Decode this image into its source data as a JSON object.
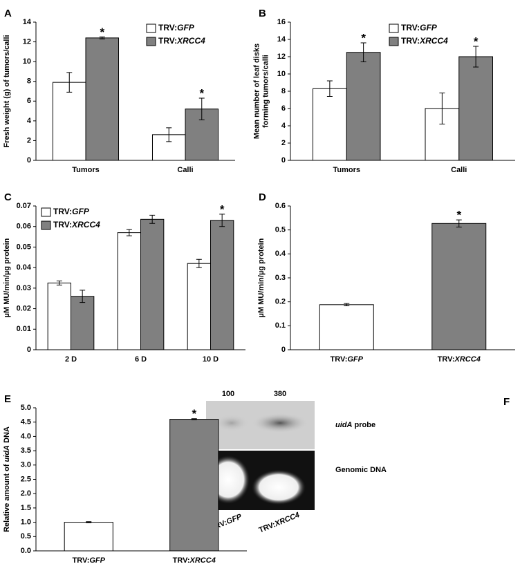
{
  "chart_data": [
    {
      "type": "bar",
      "panel": "A",
      "y_label": [
        "Fresh weight (g) of tumors/calli"
      ],
      "categories": [
        "Tumors",
        "Calli"
      ],
      "series": [
        {
          "name": "TRV:GFP",
          "color": "#ffffff",
          "values": [
            7.9,
            2.6
          ],
          "errors": [
            1.0,
            0.7
          ]
        },
        {
          "name": "TRV:XRCC4",
          "color": "#808080",
          "values": [
            12.4,
            5.2
          ],
          "errors": [
            0.1,
            1.1
          ]
        }
      ],
      "ylim": [
        0,
        14
      ],
      "yticks": [
        0,
        2,
        4,
        6,
        8,
        10,
        12,
        14
      ],
      "annotations": [
        {
          "text": "*",
          "series": 1,
          "index": 0
        },
        {
          "text": "*",
          "series": 1,
          "index": 1
        }
      ]
    },
    {
      "type": "bar",
      "panel": "B",
      "y_label": [
        "Mean number of leaf disks",
        "forming tumors/calli"
      ],
      "categories": [
        "Tumors",
        "Calli"
      ],
      "series": [
        {
          "name": "TRV:GFP",
          "color": "#ffffff",
          "values": [
            8.3,
            6.0
          ],
          "errors": [
            0.9,
            1.8
          ]
        },
        {
          "name": "TRV:XRCC4",
          "color": "#808080",
          "values": [
            12.5,
            12.0
          ],
          "errors": [
            1.1,
            1.2
          ]
        }
      ],
      "ylim": [
        0,
        16
      ],
      "yticks": [
        0,
        2,
        4,
        6,
        8,
        10,
        12,
        14,
        16
      ],
      "annotations": [
        {
          "text": "*",
          "series": 1,
          "index": 0
        },
        {
          "text": "*",
          "series": 1,
          "index": 1
        }
      ]
    },
    {
      "type": "bar",
      "panel": "C",
      "y_label": [
        "µM MU/min/µg protein"
      ],
      "categories": [
        "2 D",
        "6 D",
        "10 D"
      ],
      "series": [
        {
          "name": "TRV:GFP",
          "color": "#ffffff",
          "values": [
            0.0325,
            0.057,
            0.042
          ],
          "errors": [
            0.001,
            0.0015,
            0.002
          ]
        },
        {
          "name": "TRV:XRCC4",
          "color": "#808080",
          "values": [
            0.026,
            0.0635,
            0.063
          ],
          "errors": [
            0.003,
            0.002,
            0.003
          ]
        }
      ],
      "ylim": [
        0,
        0.07
      ],
      "yticks": [
        0,
        0.01,
        0.02,
        0.03,
        0.04,
        0.05,
        0.06,
        0.07
      ],
      "annotations": [
        {
          "text": "*",
          "series": 1,
          "index": 2
        }
      ]
    },
    {
      "type": "bar",
      "panel": "D",
      "y_label": [
        "µM MU/min/µg protein"
      ],
      "categories": [
        "TRV:GFP",
        "TRV:XRCC4"
      ],
      "series": [
        {
          "colors": [
            "#ffffff",
            "#808080"
          ],
          "values": [
            0.188,
            0.527
          ],
          "errors": [
            0.005,
            0.015
          ]
        }
      ],
      "ylim": [
        0,
        0.6
      ],
      "yticks": [
        0,
        0.1,
        0.2,
        0.3,
        0.4,
        0.5,
        0.6
      ],
      "annotations": [
        {
          "text": "*",
          "series": 0,
          "index": 1
        }
      ]
    },
    {
      "type": "bar",
      "panel": "E",
      "y_label": [
        "Relative amount of uidA DNA"
      ],
      "categories": [
        "TRV:GFP",
        "TRV:XRCC4"
      ],
      "series": [
        {
          "colors": [
            "#ffffff",
            "#808080"
          ],
          "values": [
            1.0,
            4.6
          ],
          "errors": [
            0.02,
            0.02
          ]
        }
      ],
      "ylim": [
        0,
        5
      ],
      "yticks": [
        {
          "value": 0,
          "label": "0.0"
        },
        {
          "value": 0.5,
          "label": "0.5"
        },
        {
          "value": 1,
          "label": "1.0"
        },
        {
          "value": 1.5,
          "label": "1.5"
        },
        {
          "value": 2,
          "label": "2.0"
        },
        {
          "value": 2.5,
          "label": "2.5"
        },
        {
          "value": 3,
          "label": "3.0"
        },
        {
          "value": 3.5,
          "label": "3.5"
        },
        {
          "value": 4,
          "label": "4.0"
        },
        {
          "value": 4.5,
          "label": "4.5"
        },
        {
          "value": 5,
          "label": "5.0"
        }
      ],
      "annotations": [
        {
          "text": "*",
          "series": 0,
          "index": 1
        }
      ]
    }
  ],
  "gel": {
    "panel": "F",
    "lanes": [
      "100",
      "380"
    ],
    "rows": [
      "uidA probe",
      "Genomic DNA"
    ],
    "samples": [
      "TRV:GFP",
      "TRV:XRCC4"
    ]
  }
}
